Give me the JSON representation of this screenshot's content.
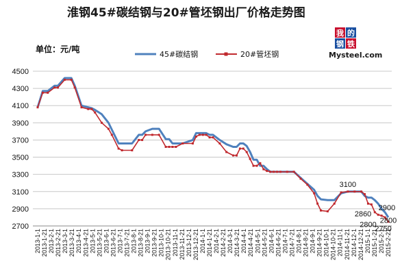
{
  "header": {
    "title": "淮钢45#碳结钢与20#管坯钢出厂价格走势图",
    "unit_label": "单位：元/吨"
  },
  "logo": {
    "chars": [
      "我",
      "的",
      "钢",
      "铁"
    ],
    "wordmark": "Mysteel.com",
    "colors": {
      "red": "#c8102e",
      "blue": "#1a4fa0"
    }
  },
  "chart_data": {
    "type": "line",
    "title": "淮钢45#碳结钢与20#管坯钢出厂价格走势图",
    "ylabel": "单位：元/吨",
    "ylim": [
      2700,
      4500
    ],
    "yticks": [
      2700,
      2900,
      3100,
      3300,
      3500,
      3700,
      3900,
      4100,
      4300,
      4500
    ],
    "grid": "horizontal",
    "legend_position": "top-center",
    "categories": [
      "2013-1-1",
      "2013-1-21",
      "2013-2-1",
      "2013-2-21",
      "2013-3-1",
      "2013-3-21",
      "2013-4-1",
      "2013-4-21",
      "2013-5-1",
      "2013-5-21",
      "2013-6-1",
      "2013-6-21",
      "2013-7-1",
      "2013-7-21",
      "2013-8-1",
      "2013-8-21",
      "2013-9-1",
      "2013-9-21",
      "2013-10-1",
      "2013-10-21",
      "2013-11-1",
      "2013-11-21",
      "2013-12-1",
      "2013-12-21",
      "2014-1-1",
      "2014-1-21",
      "2014-2-1",
      "2014-2-21",
      "2014-3-1",
      "2014-3-21",
      "2014-4-1",
      "2014-4-21",
      "2014-5-1",
      "2014-5-21",
      "2014-6-1",
      "2014-6-21",
      "2014-7-1",
      "2014-7-21",
      "2014-8-1",
      "2014-8-21",
      "2014-9-1",
      "2014-9-21",
      "2014-10-1",
      "2014-10-21",
      "2014-11-1",
      "2014-11-21",
      "2014-12-1",
      "2014-12-21",
      "2015-1-1",
      "2015-1-21",
      "2015-2-1",
      "2015-2-21"
    ],
    "series": [
      {
        "name": "45#碳结钢",
        "color": "#4f81bd",
        "x": [
          0,
          1.5,
          3,
          5,
          6,
          8,
          10,
          11,
          13,
          15,
          16,
          17,
          19,
          21,
          22,
          24,
          25,
          28,
          30,
          31,
          32,
          34,
          36,
          38,
          39,
          40,
          41,
          43,
          46,
          47,
          48,
          49,
          50,
          51,
          52,
          54,
          56,
          58,
          59,
          60,
          61,
          62,
          63,
          64,
          65,
          66,
          67,
          68,
          69,
          70,
          71
        ],
        "values": [
          4080,
          4270,
          4270,
          4330,
          4330,
          4420,
          4420,
          4330,
          4100,
          4080,
          4070,
          4050,
          4000,
          3900,
          3820,
          3660,
          3660,
          3660,
          3760,
          3760,
          3800,
          3830,
          3830,
          3710,
          3710,
          3660,
          3660,
          3660,
          3700,
          3780,
          3780,
          3780,
          3780,
          3760,
          3760,
          3700,
          3650,
          3620,
          3620,
          3660,
          3660,
          3630,
          3560,
          3470,
          3470,
          3400,
          3400,
          3360,
          3330,
          3330,
          3330
        ]
      },
      {
        "name": "20#管坯钢",
        "color": "#c0282d",
        "x": [
          0,
          1.5,
          3,
          5,
          6,
          8,
          10,
          11,
          13,
          15,
          16,
          17,
          19,
          21,
          22,
          24,
          25,
          28,
          30,
          31,
          32,
          34,
          36,
          38,
          39,
          40,
          41,
          43,
          46,
          47,
          48,
          49,
          50,
          51,
          52,
          54,
          56,
          58,
          59,
          60,
          61,
          62,
          63,
          64,
          65,
          66,
          67,
          68,
          69,
          70,
          71
        ],
        "values": [
          4080,
          4250,
          4250,
          4310,
          4310,
          4400,
          4400,
          4310,
          4080,
          4060,
          4060,
          4020,
          3900,
          3830,
          3760,
          3600,
          3580,
          3580,
          3700,
          3700,
          3760,
          3760,
          3760,
          3620,
          3620,
          3620,
          3620,
          3660,
          3660,
          3740,
          3760,
          3760,
          3760,
          3730,
          3730,
          3660,
          3560,
          3520,
          3520,
          3600,
          3600,
          3560,
          3480,
          3400,
          3400,
          3430,
          3360,
          3340,
          3330,
          3330,
          3330
        ]
      }
    ],
    "annotations": [
      "3100",
      "2900",
      "2860",
      "2800",
      "2800",
      "2750"
    ]
  },
  "series_tail": {
    "x": [
      72,
      74,
      76,
      78,
      80,
      82,
      83,
      84,
      86,
      88,
      90,
      92,
      94,
      96,
      97,
      98,
      99,
      100
    ],
    "s45": [
      3330,
      3330,
      3330,
      3260,
      3190,
      3120,
      3050,
      3010,
      3000,
      3000,
      3080,
      3100,
      3100,
      3100,
      3050,
      3030,
      3030,
      3000
    ],
    "s20": [
      3330,
      3330,
      3330,
      3250,
      3180,
      3080,
      2960,
      2880,
      2870,
      2960,
      3090,
      3100,
      3100,
      3100,
      3070,
      2960,
      2950,
      2860
    ]
  },
  "series_end": {
    "x": [
      101,
      102,
      103,
      104
    ],
    "s45": [
      2960,
      2900,
      2860,
      2800
    ],
    "s20": [
      2830,
      2820,
      2800,
      2750
    ]
  }
}
